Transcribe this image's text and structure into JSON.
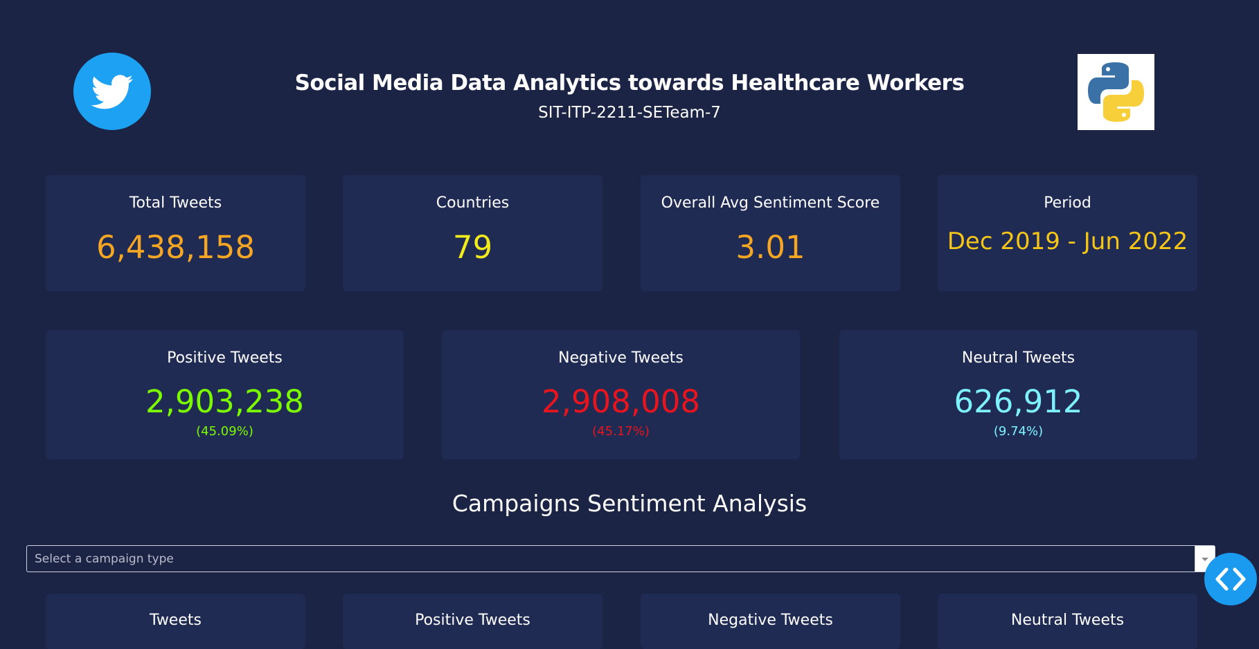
{
  "header": {
    "title": "Social Media Data Analytics towards Healthcare Workers",
    "subtitle": "SIT-ITP-2211-SETeam-7"
  },
  "stats": [
    {
      "label": "Total Tweets",
      "value": "6,438,158"
    },
    {
      "label": "Countries",
      "value": "79"
    },
    {
      "label": "Overall Avg Sentiment Score",
      "value": "3.01"
    },
    {
      "label": "Period",
      "value": "Dec 2019 - Jun 2022"
    }
  ],
  "sentiment": [
    {
      "label": "Positive Tweets",
      "value": "2,903,238",
      "percent": "(45.09%)"
    },
    {
      "label": "Negative Tweets",
      "value": "2,908,008",
      "percent": "(45.17%)"
    },
    {
      "label": "Neutral Tweets",
      "value": "626,912",
      "percent": "(9.74%)"
    }
  ],
  "campaigns": {
    "title": "Campaigns Sentiment Analysis",
    "placeholder": "Select a campaign type",
    "cards": [
      "Tweets",
      "Positive Tweets",
      "Negative Tweets",
      "Neutral Tweets"
    ]
  }
}
